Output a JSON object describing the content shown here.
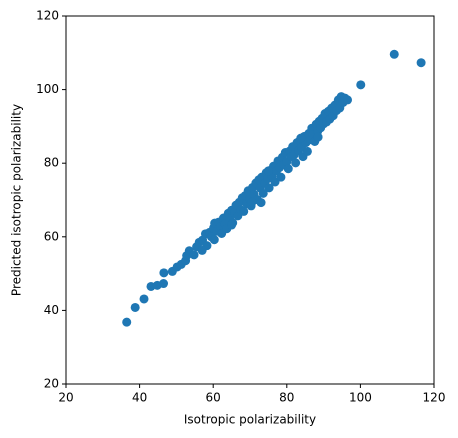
{
  "chart_data": {
    "type": "scatter",
    "x_label": "Isotropic polarizability",
    "y_label": "Predicted isotropic polarizability",
    "color": "#1f77b4",
    "xlim": [
      20,
      120
    ],
    "ylim": [
      20,
      120
    ],
    "xticks": [
      20,
      40,
      60,
      80,
      100,
      120
    ],
    "yticks": [
      20,
      40,
      60,
      80,
      100,
      120
    ],
    "x": [
      36.5,
      38.8,
      41.2,
      43.1,
      44.8,
      46.5,
      46.6,
      48.9,
      50.2,
      51.3,
      52.5,
      52.8,
      53.5,
      54.8,
      55.5,
      56.2,
      57.1,
      57.9,
      58.3,
      59.0,
      59.5,
      60.1,
      60.4,
      61.0,
      61.5,
      62.0,
      62.3,
      62.8,
      63.2,
      63.7,
      64.1,
      64.5,
      65.0,
      65.3,
      65.8,
      66.2,
      66.7,
      67.1,
      67.5,
      67.9,
      68.3,
      68.7,
      69.1,
      69.5,
      69.9,
      70.3,
      70.7,
      71.1,
      71.6,
      72.0,
      72.4,
      72.8,
      73.2,
      73.6,
      74.0,
      74.4,
      74.8,
      75.2,
      75.6,
      76.0,
      76.4,
      76.8,
      77.2,
      77.6,
      78.0,
      78.4,
      78.8,
      79.2,
      79.6,
      80.0,
      80.4,
      80.8,
      81.2,
      81.6,
      82.0,
      82.4,
      82.8,
      83.2,
      83.6,
      84.0,
      84.4,
      84.8,
      85.2,
      85.6,
      86.0,
      86.4,
      86.8,
      87.2,
      87.6,
      88.0,
      88.4,
      88.8,
      89.2,
      89.6,
      90.0,
      90.4,
      90.8,
      91.3,
      91.7,
      92.2,
      92.6,
      93.1,
      93.5,
      94.0,
      94.4,
      94.8,
      95.3,
      95.8,
      96.5,
      100.1,
      109.2,
      116.5,
      70.5,
      73.0,
      65.0,
      60.3,
      57.0,
      83.8,
      75.0,
      88.5
    ],
    "values": [
      36.8,
      40.8,
      43.1,
      46.5,
      46.8,
      47.3,
      50.2,
      50.6,
      51.8,
      52.5,
      53.5,
      54.9,
      56.2,
      55.1,
      57.3,
      58.5,
      59.1,
      60.8,
      57.6,
      61.2,
      60.0,
      62.4,
      63.7,
      61.5,
      64.0,
      62.8,
      60.9,
      65.1,
      63.5,
      62.2,
      66.4,
      64.9,
      67.2,
      63.8,
      66.5,
      68.6,
      65.7,
      69.4,
      67.3,
      70.6,
      66.9,
      71.2,
      69.0,
      72.5,
      70.3,
      68.4,
      73.4,
      71.5,
      74.6,
      70.1,
      75.5,
      73.2,
      76.2,
      71.8,
      74.6,
      77.4,
      75.8,
      73.3,
      78.1,
      76.5,
      79.2,
      74.9,
      77.9,
      80.6,
      78.8,
      76.2,
      81.6,
      79.6,
      82.9,
      80.4,
      78.5,
      83.3,
      81.8,
      84.5,
      82.3,
      80.1,
      85.6,
      83.4,
      86.2,
      84.3,
      81.8,
      87.3,
      85.6,
      83.2,
      88.1,
      86.4,
      89.5,
      87.8,
      85.9,
      90.6,
      88.7,
      91.4,
      89.6,
      92.2,
      90.7,
      93.5,
      91.2,
      94.1,
      92.0,
      95.0,
      92.9,
      95.8,
      94.3,
      97.2,
      95.0,
      98.1,
      96.5,
      97.7,
      97.2,
      101.3,
      109.6,
      107.3,
      69.4,
      69.3,
      63.2,
      59.2,
      56.3,
      86.8,
      77.9,
      87.1
    ]
  }
}
